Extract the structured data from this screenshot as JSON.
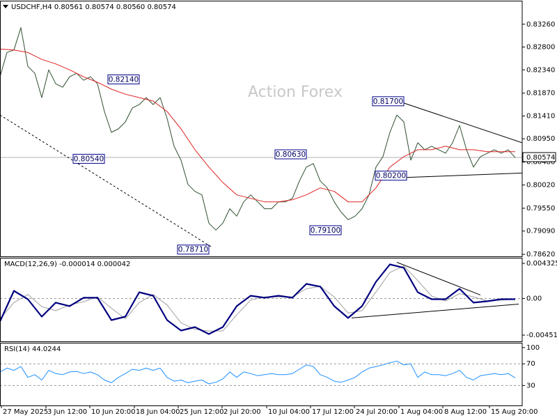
{
  "chart_data": [
    {
      "type": "line",
      "title": "USDCHF,H4 0.80561 0.80574 0.80560 0.80574",
      "watermark": "Action Forex",
      "xlim": [
        0,
        74.8
      ],
      "xticks": [
        {
          "value": 0.2,
          "label": "27 May 2025"
        },
        {
          "value": 6.6,
          "label": "3 Jun 12:00"
        },
        {
          "value": 12.9,
          "label": "10 Jun 20:00"
        },
        {
          "value": 19.3,
          "label": "18 Jun 04:00"
        },
        {
          "value": 25.6,
          "label": "25 Jun 12:00"
        },
        {
          "value": 31.9,
          "label": "2 Jul 20:00"
        },
        {
          "value": 38.3,
          "label": "10 Jul 04:00"
        },
        {
          "value": 44.6,
          "label": "17 Jul 12:00"
        },
        {
          "value": 50.9,
          "label": "24 Jul 20:00"
        },
        {
          "value": 57.3,
          "label": "1 Aug 04:00"
        },
        {
          "value": 63.6,
          "label": "8 Aug 12:00"
        },
        {
          "value": 70.3,
          "label": "15 Aug 20:00"
        }
      ],
      "ylim": [
        0.7858,
        0.8372
      ],
      "yticks": [
        {
          "value": 0.8326,
          "label": "0.83260"
        },
        {
          "value": 0.828,
          "label": "0.82800"
        },
        {
          "value": 0.8234,
          "label": "0.82340"
        },
        {
          "value": 0.8187,
          "label": "0.81870"
        },
        {
          "value": 0.8141,
          "label": "0.81410"
        },
        {
          "value": 0.8095,
          "label": "0.80950"
        },
        {
          "value": 0.8048,
          "label": "0.80480"
        },
        {
          "value": 0.8002,
          "label": "0.80020"
        },
        {
          "value": 0.7955,
          "label": "0.79550"
        },
        {
          "value": 0.7909,
          "label": "0.79090"
        },
        {
          "value": 0.7862,
          "label": "0.78620"
        }
      ],
      "series": [
        {
          "color": "#2f4f2f",
          "x": [
            0,
            1,
            2,
            3,
            4,
            5,
            6,
            7,
            8,
            9,
            10,
            11,
            12,
            13,
            14,
            15,
            16,
            17,
            18,
            19,
            20,
            21,
            22,
            23,
            24,
            25,
            26,
            27,
            28,
            29,
            30,
            31,
            32,
            33,
            34,
            35,
            36,
            37,
            38,
            39,
            40,
            41,
            42,
            43,
            44,
            45,
            46,
            47,
            48,
            49,
            50,
            51,
            52,
            53,
            54,
            55,
            56,
            57,
            58,
            59,
            60,
            61,
            62,
            63,
            64,
            65,
            66,
            67,
            68,
            69,
            70,
            71,
            72,
            73,
            74
          ],
          "values": [
            0.822,
            0.8269,
            0.8274,
            0.8319,
            0.8241,
            0.8227,
            0.8178,
            0.8234,
            0.8206,
            0.8199,
            0.822,
            0.8227,
            0.8213,
            0.822,
            0.8206,
            0.815,
            0.8108,
            0.8115,
            0.8129,
            0.8157,
            0.8164,
            0.8178,
            0.8164,
            0.8178,
            0.8136,
            0.808,
            0.8052,
            0.8003,
            0.7989,
            0.7982,
            0.7925,
            0.7911,
            0.7925,
            0.7954,
            0.7939,
            0.7968,
            0.7982,
            0.7968,
            0.7954,
            0.7954,
            0.7968,
            0.7968,
            0.7975,
            0.801,
            0.8038,
            0.8045,
            0.801,
            0.7996,
            0.7968,
            0.7947,
            0.7932,
            0.7939,
            0.7954,
            0.7982,
            0.8038,
            0.8059,
            0.8108,
            0.8143,
            0.8129,
            0.8052,
            0.8087,
            0.8073,
            0.808,
            0.8073,
            0.8066,
            0.8087,
            0.8122,
            0.8073,
            0.8038,
            0.8059,
            0.8066,
            0.8073,
            0.8066,
            0.8073,
            0.8057
          ]
        },
        {
          "color": "#e02020",
          "x": [
            0,
            2,
            4,
            6,
            8,
            10,
            12,
            14,
            16,
            18,
            20,
            22,
            24,
            26,
            28,
            30,
            32,
            34,
            36,
            38,
            40,
            42,
            44,
            46,
            48,
            50,
            52,
            54,
            56,
            58,
            60,
            62,
            64,
            66,
            68,
            70,
            72,
            74
          ],
          "values": [
            0.8276,
            0.8274,
            0.8269,
            0.8255,
            0.8246,
            0.8234,
            0.822,
            0.8209,
            0.8195,
            0.8185,
            0.8178,
            0.8171,
            0.815,
            0.8115,
            0.8073,
            0.8038,
            0.8007,
            0.7982,
            0.7975,
            0.7968,
            0.7968,
            0.7972,
            0.7982,
            0.7996,
            0.7989,
            0.7968,
            0.7968,
            0.7996,
            0.8038,
            0.8059,
            0.8073,
            0.8073,
            0.808,
            0.8073,
            0.8073,
            0.8069,
            0.8069,
            0.8069
          ]
        }
      ],
      "current": {
        "value": 0.80574,
        "label": "0.80574"
      },
      "annotations": [
        {
          "x": 20,
          "value": 0.8214,
          "label": "0.82140"
        },
        {
          "x": 15,
          "value": 0.8054,
          "label": "0.80540"
        },
        {
          "x": 30,
          "value": 0.7871,
          "label": "0.78710"
        },
        {
          "x": 44,
          "value": 0.8063,
          "label": "0.80630"
        },
        {
          "x": 49,
          "value": 0.791,
          "label": "0.79100"
        },
        {
          "x": 58,
          "value": 0.817,
          "label": "0.81700"
        },
        {
          "x": 58.4,
          "value": 0.802,
          "label": "0.80200"
        }
      ],
      "trendlines": [
        {
          "x": [
            0,
            30.5
          ],
          "values": [
            0.8143,
            0.7876
          ],
          "dashed": true
        },
        {
          "x": [
            57.8,
            75
          ],
          "values": [
            0.8168,
            0.8087
          ],
          "dashed": false
        },
        {
          "x": [
            58.2,
            75
          ],
          "values": [
            0.8017,
            0.8026
          ],
          "dashed": false
        }
      ]
    },
    {
      "type": "line",
      "title": "MACD(12,26,9) -0.000014 0.000042",
      "ylim": [
        -0.00528,
        0.00493
      ],
      "yticks": [
        0.004325,
        {
          "value": 0,
          "label": "0.00"
        },
        -0.004511
      ],
      "levels": [
        0
      ],
      "series": [
        {
          "color": "#a0a0a0",
          "x": [
            0,
            2,
            4,
            6,
            8,
            10,
            12,
            14,
            16,
            18,
            20,
            22,
            24,
            26,
            28,
            30,
            32,
            34,
            36,
            38,
            40,
            42,
            44,
            46,
            48,
            50,
            52,
            54,
            56,
            58,
            60,
            62,
            64,
            66,
            68,
            70,
            72,
            74
          ],
          "values": [
            -0.0025,
            -0.0005,
            0.0005,
            -0.001,
            -0.0015,
            -0.0008,
            -0.0004,
            0.0002,
            -0.0012,
            -0.0025,
            -0.0005,
            0.0005,
            -0.0008,
            -0.003,
            -0.0038,
            -0.004,
            -0.004,
            -0.002,
            -0.0002,
            0.0002,
            0.0002,
            0.0002,
            0.0012,
            0.0015,
            0.0002,
            -0.0018,
            -0.0015,
            0.0008,
            0.0032,
            0.004,
            0.0022,
            0.0003,
            -0.0003,
            0.0006,
            0.0002,
            -0.0003,
            -0.0002,
            -0.0001
          ]
        },
        {
          "color": "#000080",
          "x": [
            0,
            2,
            4,
            6,
            8,
            10,
            12,
            14,
            16,
            18,
            20,
            22,
            24,
            26,
            28,
            30,
            32,
            34,
            36,
            38,
            40,
            42,
            44,
            46,
            48,
            50,
            52,
            54,
            56,
            58,
            60,
            62,
            64,
            66,
            68,
            70,
            72,
            74
          ],
          "values": [
            -0.00283,
            0.00094,
            -9e-05,
            -0.00223,
            -0.00051,
            -0.00094,
            9e-05,
            9e-05,
            -0.00266,
            -0.00223,
            0.00077,
            0.00034,
            -0.00266,
            -0.00395,
            -0.00352,
            -0.00438,
            -0.00352,
            -0.00094,
            0.00034,
            9e-05,
            0.00034,
            9e-05,
            0.0018,
            0.00146,
            -0.00094,
            -0.0024,
            -0.00094,
            0.00206,
            0.0042,
            0.00378,
            0.00077,
            -9e-05,
            -9e-05,
            0.0012,
            -0.00051,
            -0.00034,
            -9e-05,
            -9e-05
          ]
        }
      ],
      "trendlines": [
        {
          "x": [
            57,
            69
          ],
          "values": [
            0.00446,
            0.00043
          ],
          "dashed": false
        },
        {
          "x": [
            50.5,
            74.5
          ],
          "values": [
            -0.0024,
            -0.00069
          ],
          "dashed": false
        }
      ]
    },
    {
      "type": "line",
      "title": "RSI(14) 44.0244",
      "ylim": [
        -6.9,
        107.6
      ],
      "yticks": [
        100,
        70,
        30
      ],
      "levels": [
        70,
        30
      ],
      "series": [
        {
          "color": "#1e90ff",
          "x": [
            0,
            1,
            2,
            3,
            4,
            5,
            6,
            7,
            8,
            9,
            10,
            11,
            12,
            13,
            14,
            15,
            16,
            17,
            18,
            19,
            20,
            21,
            22,
            23,
            24,
            25,
            26,
            27,
            28,
            29,
            30,
            31,
            32,
            33,
            34,
            35,
            36,
            37,
            38,
            39,
            40,
            41,
            42,
            43,
            44,
            45,
            46,
            47,
            48,
            49,
            50,
            51,
            52,
            53,
            54,
            55,
            56,
            57,
            58,
            59,
            60,
            61,
            62,
            63,
            64,
            65,
            66,
            67,
            68,
            69,
            70,
            71,
            72,
            73,
            74
          ],
          "values": [
            55,
            62,
            58,
            65,
            45,
            50,
            40,
            58,
            52,
            50,
            55,
            56,
            52,
            55,
            50,
            40,
            35,
            45,
            52,
            60,
            58,
            62,
            58,
            62,
            45,
            38,
            40,
            35,
            38,
            40,
            33,
            36,
            42,
            55,
            45,
            55,
            52,
            48,
            50,
            52,
            50,
            50,
            52,
            60,
            68,
            65,
            50,
            45,
            38,
            36,
            40,
            45,
            55,
            62,
            65,
            68,
            72,
            75,
            68,
            70,
            45,
            55,
            50,
            50,
            48,
            52,
            58,
            45,
            40,
            48,
            50,
            52,
            50,
            52,
            44.0244
          ]
        }
      ]
    }
  ]
}
